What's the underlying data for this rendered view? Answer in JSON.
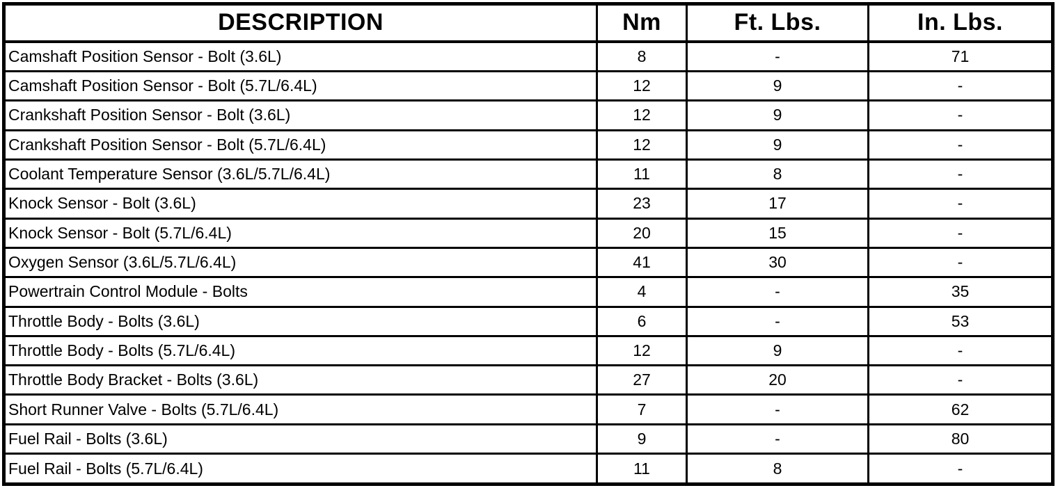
{
  "colors": {
    "background": "#ffffff",
    "border": "#000000",
    "text": "#000000"
  },
  "table": {
    "headers": {
      "description": "DESCRIPTION",
      "nm": "Nm",
      "ft_lbs": "Ft. Lbs.",
      "in_lbs": "In. Lbs."
    },
    "rows": [
      {
        "description": "Camshaft Position Sensor - Bolt (3.6L)",
        "nm": "8",
        "ft_lbs": "-",
        "in_lbs": "71"
      },
      {
        "description": "Camshaft Position Sensor - Bolt (5.7L/6.4L)",
        "nm": "12",
        "ft_lbs": "9",
        "in_lbs": "-"
      },
      {
        "description": "Crankshaft Position Sensor - Bolt (3.6L)",
        "nm": "12",
        "ft_lbs": "9",
        "in_lbs": "-"
      },
      {
        "description": "Crankshaft Position Sensor - Bolt (5.7L/6.4L)",
        "nm": "12",
        "ft_lbs": "9",
        "in_lbs": "-"
      },
      {
        "description": "Coolant Temperature Sensor (3.6L/5.7L/6.4L)",
        "nm": "11",
        "ft_lbs": "8",
        "in_lbs": "-"
      },
      {
        "description": "Knock Sensor - Bolt (3.6L)",
        "nm": "23",
        "ft_lbs": "17",
        "in_lbs": "-"
      },
      {
        "description": "Knock Sensor - Bolt (5.7L/6.4L)",
        "nm": "20",
        "ft_lbs": "15",
        "in_lbs": "-"
      },
      {
        "description": "Oxygen Sensor (3.6L/5.7L/6.4L)",
        "nm": "41",
        "ft_lbs": "30",
        "in_lbs": "-"
      },
      {
        "description": "Powertrain Control Module - Bolts",
        "nm": "4",
        "ft_lbs": "-",
        "in_lbs": "35"
      },
      {
        "description": "Throttle Body - Bolts (3.6L)",
        "nm": "6",
        "ft_lbs": "-",
        "in_lbs": "53"
      },
      {
        "description": "Throttle Body - Bolts (5.7L/6.4L)",
        "nm": "12",
        "ft_lbs": "9",
        "in_lbs": "-"
      },
      {
        "description": "Throttle Body Bracket - Bolts (3.6L)",
        "nm": "27",
        "ft_lbs": "20",
        "in_lbs": "-"
      },
      {
        "description": "Short Runner Valve - Bolts (5.7L/6.4L)",
        "nm": "7",
        "ft_lbs": "-",
        "in_lbs": "62"
      },
      {
        "description": "Fuel Rail - Bolts (3.6L)",
        "nm": "9",
        "ft_lbs": "-",
        "in_lbs": "80"
      },
      {
        "description": "Fuel Rail - Bolts (5.7L/6.4L)",
        "nm": "11",
        "ft_lbs": "8",
        "in_lbs": "-"
      }
    ]
  }
}
